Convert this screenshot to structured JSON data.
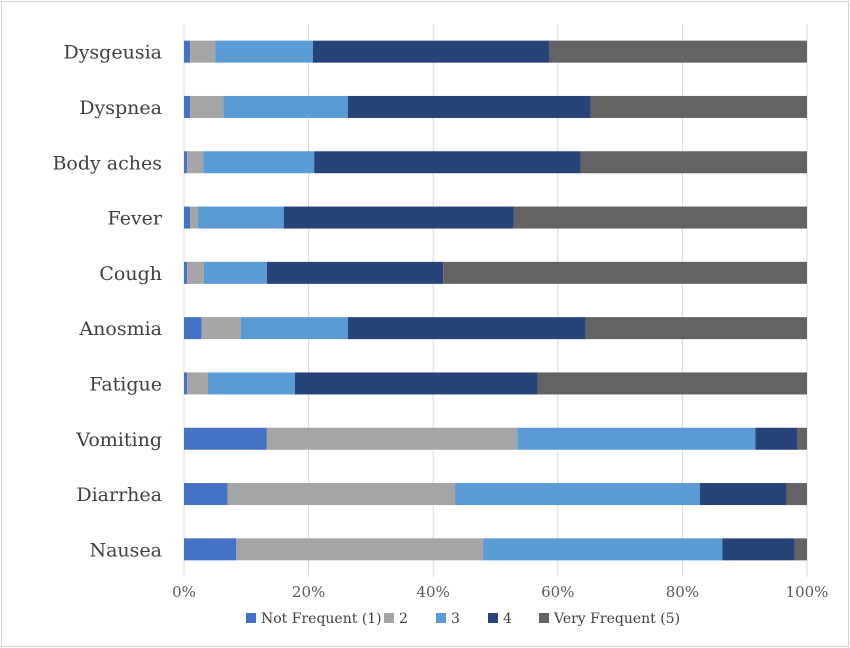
{
  "chart_data": {
    "type": "bar",
    "orientation": "horizontal",
    "stacked": "percent",
    "categories": [
      "Dysgeusia",
      "Dyspnea",
      "Body aches",
      "Fever",
      "Cough",
      "Anosmia",
      "Fatigue",
      "Vomiting",
      "Diarrhea",
      "Nausea"
    ],
    "series": [
      {
        "name": "Not Frequent (1)",
        "color": "#4472C4",
        "values": [
          1.0,
          1.0,
          0.5,
          1.0,
          0.5,
          2.8,
          0.5,
          13.3,
          7.0,
          8.4
        ]
      },
      {
        "name": "2",
        "color": "#A5A5A5",
        "values": [
          4.0,
          5.3,
          2.6,
          1.2,
          2.7,
          6.3,
          3.3,
          40.2,
          36.5,
          39.6
        ]
      },
      {
        "name": "3",
        "color": "#5B9BD5",
        "values": [
          15.7,
          20.0,
          17.8,
          13.8,
          10.1,
          17.2,
          14.0,
          38.2,
          39.3,
          38.4
        ]
      },
      {
        "name": "4",
        "color": "#264478",
        "values": [
          38.0,
          39.0,
          42.8,
          36.9,
          28.3,
          38.2,
          39.0,
          6.8,
          13.9,
          11.6
        ]
      },
      {
        "name": "Very Frequent (5)",
        "color": "#636363",
        "values": [
          41.3,
          34.7,
          36.3,
          47.1,
          58.4,
          35.5,
          43.2,
          1.5,
          3.3,
          2.0
        ]
      }
    ],
    "x_ticks": [
      "0%",
      "20%",
      "40%",
      "60%",
      "80%",
      "100%"
    ],
    "xlim": [
      0,
      100
    ],
    "grid": "vertical",
    "legend_position": "bottom"
  }
}
